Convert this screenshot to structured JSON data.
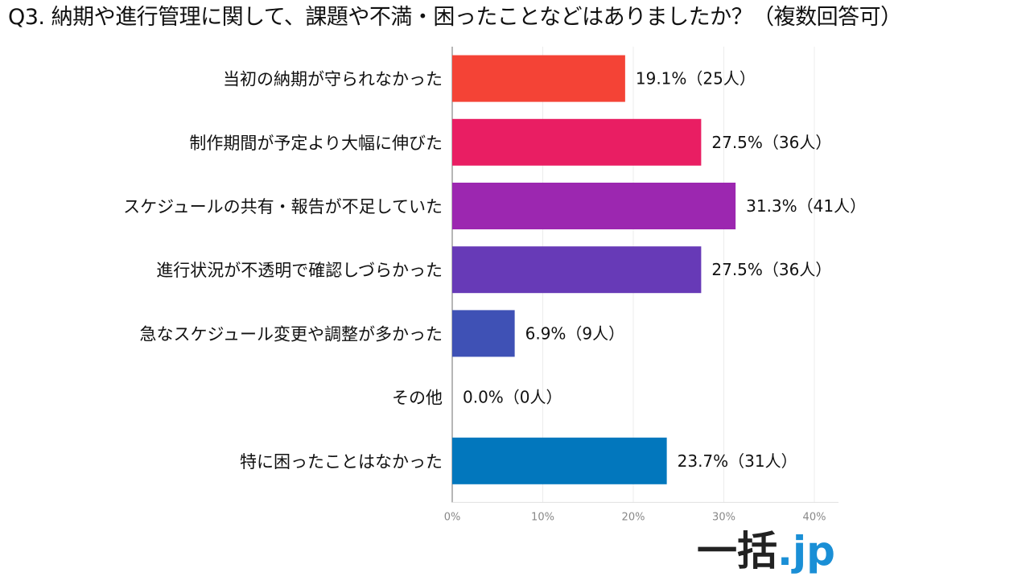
{
  "title": "Q3. 納期や進行管理に関して、課題や不満・困ったことなどはありましたか？（複数回答可）",
  "logo": {
    "main": "一括",
    "accent": ".jp"
  },
  "colors": [
    "#f44336",
    "#e91e63",
    "#9c27b0",
    "#673ab7",
    "#3f51b5",
    "#2196f3",
    "#0277bd"
  ],
  "chart_data": {
    "type": "bar",
    "orientation": "horizontal",
    "categories": [
      "当初の納期が守られなかった",
      "制作期間が予定より大幅に伸びた",
      "スケジュールの共有・報告が不足していた",
      "進行状況が不透明で確認しづらかった",
      "急なスケジュール変更や調整が多かった",
      "その他",
      "特に困ったことはなかった"
    ],
    "values": [
      19.1,
      27.5,
      31.3,
      27.5,
      6.9,
      0.0,
      23.7
    ],
    "data_labels": [
      "19.1%（25人）",
      "27.5%（36人）",
      "31.3%（41人）",
      "27.5%（36人）",
      "6.9%（9人）",
      "0.0%（0人）",
      "23.7%（31人）"
    ],
    "xlim": [
      0,
      40
    ],
    "xticks": [
      "0%",
      "10%",
      "20%",
      "30%",
      "40%"
    ],
    "grid": true
  }
}
